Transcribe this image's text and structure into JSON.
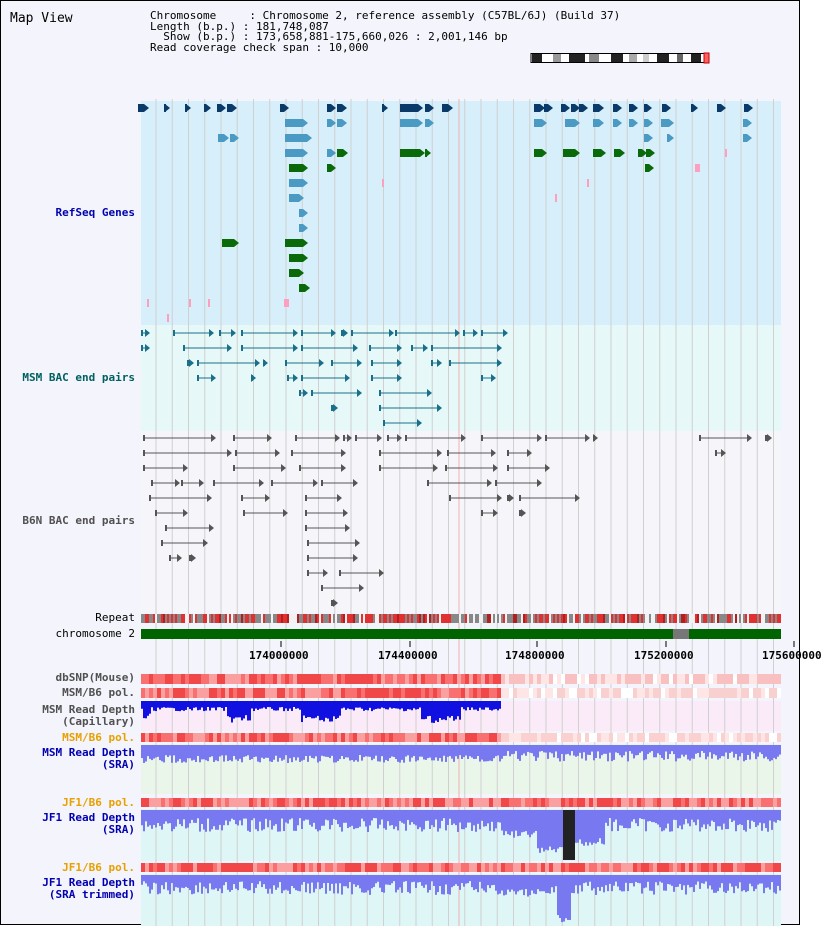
{
  "view_title": "Map View",
  "info": {
    "chromosome_line": "Chromosome     : Chromosome 2, reference assembly (C57BL/6J) (Build 37)",
    "length_line": "Length (b.p.) : 181,748,087",
    "show_line": "  Show (b.p.) : 173,658,881-175,660,026 : 2,001,146 bp",
    "coverage_line": "Read coverage check span : 10,000"
  },
  "tracks": {
    "refseq": "RefSeq Genes",
    "msm_bac": "MSM BAC end pairs",
    "b6n_bac": "B6N BAC end pairs",
    "repeat": "Repeat",
    "chromosome": "chromosome 2",
    "dbsnp": "dbSNP(Mouse)",
    "msm_b6_pol_1": "MSM/B6 pol.",
    "msm_depth_cap_1": "MSM Read Depth",
    "msm_depth_cap_2": "(Capillary)",
    "msm_b6_pol_2": "MSM/B6 pol.",
    "msm_depth_sra_1": "MSM Read Depth",
    "msm_depth_sra_2": "(SRA)",
    "jf1_pol_1": "JF1/B6 pol.",
    "jf1_depth_sra_1": "JF1 Read Depth",
    "jf1_depth_sra_2": "(SRA)",
    "jf1_pol_2": "JF1/B6 pol.",
    "jf1_depth_trim_1": "JF1 Read Depth",
    "jf1_depth_trim_2": "(SRA trimmed)"
  },
  "axis": {
    "ticks": [
      "174000000",
      "174400000",
      "174800000",
      "175200000",
      "175600000"
    ]
  },
  "colors": {
    "refseq_bg": "#d6effa",
    "msm_bac_bg": "#e6f8f8",
    "b6n_bac_bg": "#f6f6fa",
    "gene_dark": "#0a3a6a",
    "gene_light": "#4a9ac4",
    "gene_green": "#0a6a0a",
    "chromosome_bar": "#006400",
    "depth_dark_blue": "#1010e0",
    "depth_light_blue": "#7878f0",
    "pol_red": "#f06060",
    "label_blue": "#0000b0",
    "label_teal": "#006060",
    "label_orange": "#e8a000",
    "label_gray": "#505050"
  }
}
